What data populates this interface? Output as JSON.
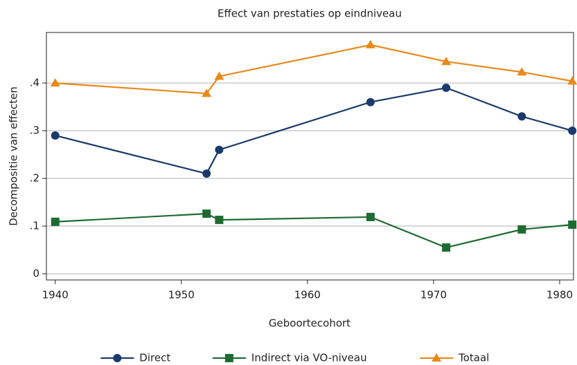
{
  "chart_data": {
    "type": "line",
    "title": "Effect van prestaties op eindniveau",
    "xlabel": "Geboortecohort",
    "ylabel": "Decompositie van effecten",
    "x": [
      1940,
      1952,
      1953,
      1965,
      1971,
      1977,
      1981
    ],
    "series": [
      {
        "name": "Direct",
        "color": "#1a3a6b",
        "marker": "circle",
        "values": [
          0.29,
          0.21,
          0.26,
          0.36,
          0.39,
          0.33,
          0.3
        ]
      },
      {
        "name": "Indirect via VO-niveau",
        "color": "#1e6b32",
        "marker": "square",
        "values": [
          0.109,
          0.126,
          0.113,
          0.119,
          0.055,
          0.093,
          0.103
        ]
      },
      {
        "name": "Totaal",
        "color": "#e8891a",
        "marker": "triangle",
        "values": [
          0.4,
          0.378,
          0.414,
          0.48,
          0.445,
          0.423,
          0.404
        ]
      }
    ],
    "xlim": [
      1939.3,
      1981.1
    ],
    "xticks": [
      1940,
      1950,
      1960,
      1970,
      1980
    ],
    "ylim": [
      -0.013,
      0.506
    ],
    "yticks": [
      0,
      {
        "value": 0.1,
        "label": ".1"
      },
      {
        "value": 0.2,
        "label": ".2"
      },
      {
        "value": 0.3,
        "label": ".3"
      },
      {
        "value": 0.4,
        "label": ".4"
      }
    ],
    "grid": true,
    "legend": "bottom"
  }
}
